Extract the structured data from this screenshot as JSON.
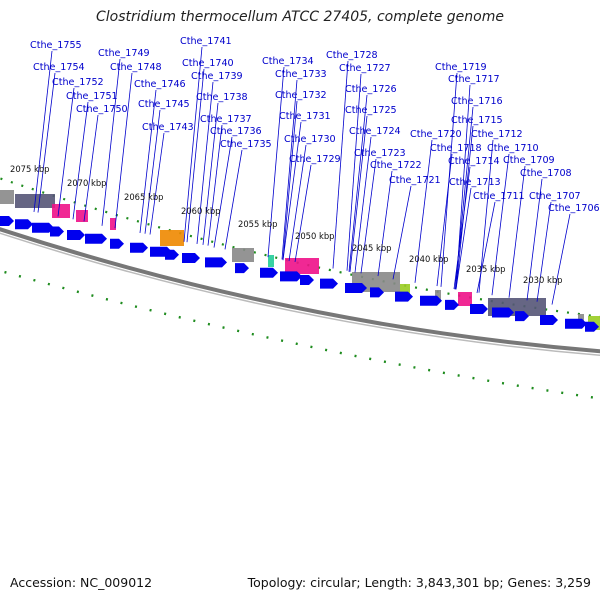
{
  "title": "Clostridium thermocellum ATCC 27405, complete genome",
  "footer": {
    "accession": "Accession: NC_009012",
    "summary": "Topology: circular; Length: 3,843,301 bp; Genes: 3,259"
  },
  "colors": {
    "gene_arrow": "#0000ee",
    "gene_label": "#0000cc",
    "ticks": "#1f8c1f",
    "backbone": "#777777",
    "pink": "#ee1188",
    "gray": "#888888",
    "orange": "#ee8800",
    "teal": "#22cc99",
    "lime": "#99cc22",
    "purple": "#555577"
  },
  "kbp_labels": [
    "2075 kbp",
    "2070 kbp",
    "2065 kbp",
    "2060 kbp",
    "2055 kbp",
    "2050 kbp",
    "2045 kbp",
    "2040 kbp",
    "2035 kbp",
    "2030 kbp"
  ],
  "gene_labels": [
    "Cthe_1755",
    "Cthe_1754",
    "Cthe_1752",
    "Cthe_1751",
    "Cthe_1750",
    "Cthe_1749",
    "Cthe_1748",
    "Cthe_1746",
    "Cthe_1745",
    "Cthe_1743",
    "Cthe_1741",
    "Cthe_1740",
    "Cthe_1739",
    "Cthe_1738",
    "Cthe_1737",
    "Cthe_1736",
    "Cthe_1735",
    "Cthe_1734",
    "Cthe_1733",
    "Cthe_1732",
    "Cthe_1731",
    "Cthe_1730",
    "Cthe_1729",
    "Cthe_1728",
    "Cthe_1727",
    "Cthe_1726",
    "Cthe_1725",
    "Cthe_1724",
    "Cthe_1723",
    "Cthe_1722",
    "Cthe_1721",
    "Cthe_1720",
    "Cthe_1719",
    "Cthe_1718",
    "Cthe_1717",
    "Cthe_1716",
    "Cthe_1715",
    "Cthe_1714",
    "Cthe_1713",
    "Cthe_1712",
    "Cthe_1711",
    "Cthe_1710",
    "Cthe_1709",
    "Cthe_1708",
    "Cthe_1707",
    "Cthe_1706"
  ]
}
